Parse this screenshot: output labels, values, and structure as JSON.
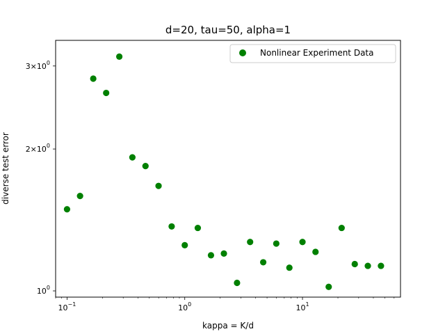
{
  "chart_data": {
    "type": "scatter",
    "title": "d=20, tau=50, alpha=1",
    "xlabel": "kappa = K/d",
    "ylabel": "diverse test error",
    "xscale": "log",
    "yscale": "log",
    "xlim": [
      0.08,
      68
    ],
    "ylim": [
      0.97,
      3.4
    ],
    "grid": false,
    "legend_position": "top-right",
    "series": [
      {
        "name": "Nonlinear Experiment Data",
        "color": "#008000",
        "marker": "circle",
        "x": [
          0.1,
          0.129,
          0.167,
          0.215,
          0.278,
          0.359,
          0.464,
          0.599,
          0.774,
          1.0,
          1.29,
          1.67,
          2.15,
          2.78,
          3.59,
          4.64,
          5.99,
          7.74,
          10.0,
          12.9,
          16.7,
          21.5,
          27.8,
          35.9,
          46.4
        ],
        "y": [
          1.49,
          1.59,
          2.82,
          2.63,
          3.14,
          1.92,
          1.84,
          1.67,
          1.37,
          1.25,
          1.36,
          1.19,
          1.2,
          1.04,
          1.27,
          1.15,
          1.26,
          1.12,
          1.27,
          1.21,
          1.02,
          1.36,
          1.14,
          1.13,
          1.13
        ]
      }
    ],
    "x_ticks": [
      {
        "value": 0.1,
        "base": "10",
        "exp": "−1"
      },
      {
        "value": 1,
        "base": "10",
        "exp": "0"
      },
      {
        "value": 10,
        "base": "10",
        "exp": "1"
      }
    ],
    "y_ticks": [
      {
        "value": 1,
        "base": "10",
        "exp": "0",
        "prefix": ""
      },
      {
        "value": 2,
        "base": "10",
        "exp": "0",
        "prefix": "2×"
      },
      {
        "value": 3,
        "base": "10",
        "exp": "0",
        "prefix": "3×"
      }
    ]
  }
}
